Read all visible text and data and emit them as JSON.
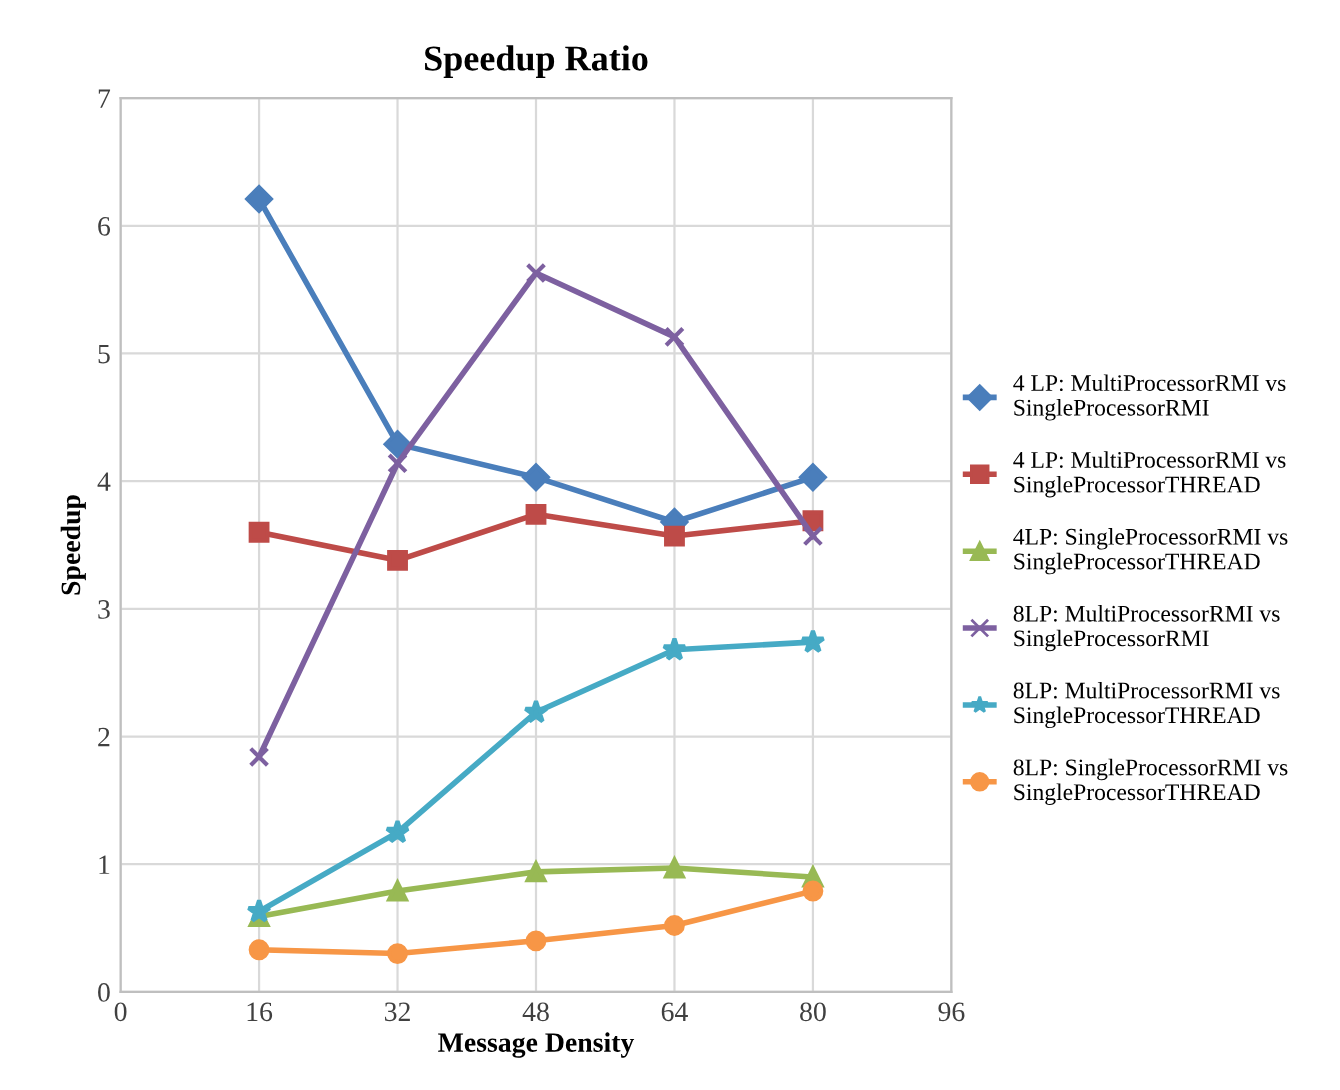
{
  "chart_data": {
    "type": "line",
    "title": "Speedup Ratio",
    "xlabel": "Message Density",
    "ylabel": "Speedup",
    "x": [
      16,
      32,
      48,
      64,
      80
    ],
    "xlim": [
      0,
      96
    ],
    "xticks": [
      0,
      16,
      32,
      48,
      64,
      80,
      96
    ],
    "ylim": [
      0,
      7
    ],
    "yticks": [
      0,
      1,
      2,
      3,
      4,
      5,
      6,
      7
    ],
    "grid": true,
    "legend": "right",
    "line_style": "solid",
    "series": [
      {
        "name": "4 LP: MultiProcessorRMI vs SingleProcessorRMI",
        "color": "#4a7ebb",
        "marker": "diamond",
        "values": [
          6.21,
          4.29,
          4.03,
          3.68,
          4.03
        ]
      },
      {
        "name": "4 LP: MultiProcessorRMI vs SingleProcessorTHREAD",
        "color": "#be4b48",
        "marker": "square",
        "values": [
          3.6,
          3.38,
          3.74,
          3.57,
          3.69
        ]
      },
      {
        "name": "4LP: SingleProcessorRMI vs SingleProcessorTHREAD",
        "color": "#98b954",
        "marker": "triangle",
        "values": [
          0.59,
          0.79,
          0.94,
          0.97,
          0.9
        ]
      },
      {
        "name": "8LP: MultiProcessorRMI vs SingleProcessorRMI",
        "color": "#7d60a0",
        "marker": "cross",
        "values": [
          1.84,
          4.14,
          5.63,
          5.13,
          3.57
        ]
      },
      {
        "name": "8LP: MultiProcessorRMI vs SingleProcessorTHREAD",
        "color": "#46aac5",
        "marker": "star",
        "values": [
          0.63,
          1.25,
          2.19,
          2.68,
          2.74
        ]
      },
      {
        "name": "8LP: SingleProcessorRMI vs SingleProcessorTHREAD",
        "color": "#f79646",
        "marker": "circle",
        "values": [
          0.33,
          0.3,
          0.4,
          0.52,
          0.79
        ]
      }
    ]
  }
}
